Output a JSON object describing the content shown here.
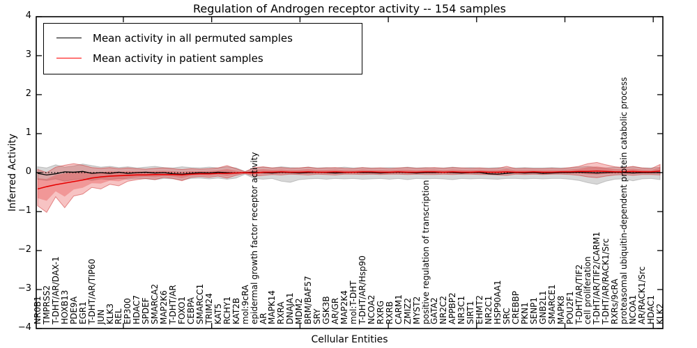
{
  "title": "Regulation of Androgen receptor activity -- 154 samples",
  "ylabel": "Inferred Activity",
  "xlabel": "Cellular Entities",
  "yticks": [
    "4",
    "3",
    "2",
    "1",
    "0",
    "−1",
    "−2",
    "−3",
    "−4"
  ],
  "legend": [
    {
      "label": "Mean activity in all permuted samples",
      "color": "#000000"
    },
    {
      "label": "Mean activity in patient samples",
      "color": "#ff0000"
    }
  ],
  "colors": {
    "patient_line": "#e60000",
    "permuted_line": "#000000",
    "patient_band": "rgba(225,40,40,0.28)",
    "patient_band_edge": "rgba(200,20,20,0.45)",
    "permuted_band": "rgba(110,110,110,0.28)",
    "frame": "#000000"
  },
  "chart_data": {
    "type": "line",
    "title": "Regulation of Androgen receptor activity -- 154 samples",
    "xlabel": "Cellular Entities",
    "ylabel": "Inferred Activity",
    "ylim": [
      -4,
      4
    ],
    "grid": false,
    "legend_position": "upper left",
    "zero_line": "dotted black line at y=0",
    "categories": [
      "NR0B1",
      "TMPRSS2",
      "T-DHT/AR/DAX-1",
      "HOXB13",
      "PDE9A",
      "EGR1",
      "T-DHT/AR/TIP60",
      "JUN",
      "KLK3",
      "REL",
      "EP300",
      "HDAC7",
      "SPDEF",
      "SMARCA2",
      "MAP2K6",
      "T-DHT/AR",
      "FOXO1",
      "CEBPA",
      "SMARCC1",
      "TRIM24",
      "KAT5",
      "RCHY1",
      "KAT2B",
      "mol:9cRA",
      "epidermal growth factor receptor activity",
      "AR",
      "MAPK14",
      "RXRA",
      "DNAJA1",
      "MDM2",
      "BRM/BAF57",
      "SRY",
      "GSK3B",
      "AR/GR",
      "MAP2K4",
      "mol:T-DHT",
      "T-DHT/AR/Hsp90",
      "NCOA2",
      "RXRG",
      "RXRB",
      "CARM1",
      "ZMIZ2",
      "MYST2",
      "positive regulation of transcription",
      "GATA2",
      "NR2C2",
      "APPBP2",
      "NR3C1",
      "SIRT1",
      "EHMT2",
      "NR2C1",
      "HSP90AA1",
      "SRC",
      "CREBBP",
      "PKN1",
      "SENP1",
      "GNB2L1",
      "SMARCE1",
      "MAPK8",
      "POU2F1",
      "T-DHT/AR/TIF2",
      "cell proliferation",
      "T-DHT/AR/TIF2/CARM1",
      "T-DHT/AR/RACK1/Src",
      "RXRs/9cRA",
      "proteasomal ubiquitin-dependent protein catabolic process",
      "NCOA1",
      "AR/RACK1/Src",
      "HDAC1",
      "KLK2"
    ],
    "series": [
      {
        "name": "Mean activity in all permuted samples",
        "color": "#000000",
        "values": [
          -0.02,
          -0.06,
          -0.03,
          0.02,
          0.01,
          0.03,
          -0.02,
          0.0,
          -0.02,
          0.01,
          -0.02,
          0.0,
          0.01,
          -0.01,
          0.0,
          -0.03,
          -0.04,
          -0.02,
          0.0,
          -0.01,
          0.01,
          0.0,
          -0.01,
          0.0,
          0.01,
          0.0,
          -0.01,
          0.01,
          0.0,
          -0.01,
          0.0,
          0.01,
          0.0,
          -0.01,
          0.0,
          0.01,
          0.0,
          0.0,
          -0.01,
          0.0,
          0.01,
          0.0,
          -0.01,
          0.0,
          0.0,
          0.01,
          0.0,
          -0.01,
          0.0,
          0.0,
          -0.03,
          -0.04,
          -0.02,
          0.0,
          -0.01,
          0.0,
          -0.02,
          -0.01,
          0.0,
          0.0,
          0.01,
          0.0,
          -0.01,
          0.0,
          0.01,
          0.0,
          -0.01,
          0.0,
          0.0,
          0.0
        ]
      },
      {
        "name": "Mean activity in patient samples",
        "color": "#e60000",
        "values": [
          -0.42,
          -0.36,
          -0.31,
          -0.27,
          -0.23,
          -0.19,
          -0.14,
          -0.11,
          -0.09,
          -0.08,
          -0.07,
          -0.06,
          -0.06,
          -0.05,
          -0.05,
          -0.05,
          -0.06,
          -0.04,
          -0.03,
          -0.03,
          -0.02,
          -0.02,
          -0.01,
          0.0,
          -0.01,
          0.01,
          0.01,
          0.02,
          0.01,
          0.01,
          0.02,
          0.01,
          0.01,
          0.02,
          0.01,
          0.01,
          0.02,
          0.02,
          0.01,
          0.01,
          0.02,
          0.01,
          0.01,
          0.02,
          0.02,
          0.01,
          0.02,
          0.01,
          0.01,
          0.02,
          0.01,
          0.01,
          0.02,
          0.01,
          0.01,
          0.02,
          0.01,
          0.01,
          0.02,
          0.02,
          0.03,
          0.03,
          0.04,
          0.03,
          0.02,
          0.02,
          0.03,
          0.02,
          0.02,
          0.04
        ]
      },
      {
        "name": "permuted_band_upper",
        "values": [
          0.15,
          0.12,
          0.2,
          0.14,
          0.17,
          0.22,
          0.18,
          0.14,
          0.16,
          0.13,
          0.15,
          0.12,
          0.14,
          0.16,
          0.13,
          0.12,
          0.15,
          0.13,
          0.12,
          0.14,
          0.12,
          0.15,
          0.12,
          0.03,
          0.12,
          0.14,
          0.12,
          0.15,
          0.13,
          0.12,
          0.14,
          0.12,
          0.13,
          0.12,
          0.14,
          0.12,
          0.13,
          0.12,
          0.12,
          0.13,
          0.12,
          0.14,
          0.12,
          0.13,
          0.12,
          0.12,
          0.14,
          0.12,
          0.13,
          0.12,
          0.12,
          0.13,
          0.12,
          0.12,
          0.13,
          0.12,
          0.12,
          0.13,
          0.12,
          0.12,
          0.14,
          0.16,
          0.13,
          0.12,
          0.14,
          0.12,
          0.15,
          0.12,
          0.12,
          0.14
        ]
      },
      {
        "name": "permuted_band_lower",
        "values": [
          -0.17,
          -0.2,
          -0.16,
          -0.22,
          -0.18,
          -0.16,
          -0.2,
          -0.16,
          -0.18,
          -0.15,
          -0.17,
          -0.15,
          -0.16,
          -0.18,
          -0.15,
          -0.16,
          -0.19,
          -0.15,
          -0.14,
          -0.16,
          -0.14,
          -0.17,
          -0.14,
          -0.04,
          -0.15,
          -0.17,
          -0.15,
          -0.22,
          -0.25,
          -0.18,
          -0.16,
          -0.15,
          -0.17,
          -0.15,
          -0.16,
          -0.15,
          -0.17,
          -0.16,
          -0.15,
          -0.17,
          -0.15,
          -0.18,
          -0.15,
          -0.16,
          -0.15,
          -0.16,
          -0.18,
          -0.15,
          -0.16,
          -0.15,
          -0.16,
          -0.17,
          -0.15,
          -0.15,
          -0.16,
          -0.15,
          -0.16,
          -0.15,
          -0.15,
          -0.17,
          -0.2,
          -0.26,
          -0.3,
          -0.22,
          -0.17,
          -0.16,
          -0.21,
          -0.16,
          -0.15,
          -0.18
        ]
      },
      {
        "name": "patient_band_upper",
        "values": [
          0.08,
          0.0,
          0.14,
          0.19,
          0.23,
          0.19,
          0.13,
          0.11,
          0.13,
          0.1,
          0.12,
          0.1,
          0.09,
          0.11,
          0.12,
          0.1,
          0.08,
          0.1,
          0.09,
          0.1,
          0.12,
          0.18,
          0.1,
          0.02,
          0.13,
          0.15,
          0.12,
          0.13,
          0.11,
          0.12,
          0.14,
          0.11,
          0.12,
          0.13,
          0.11,
          0.1,
          0.13,
          0.11,
          0.12,
          0.1,
          0.12,
          0.13,
          0.11,
          0.12,
          0.13,
          0.11,
          0.13,
          0.12,
          0.11,
          0.12,
          0.1,
          0.11,
          0.16,
          0.1,
          0.11,
          0.1,
          0.1,
          0.11,
          0.1,
          0.13,
          0.16,
          0.23,
          0.26,
          0.2,
          0.15,
          0.13,
          0.16,
          0.12,
          0.1,
          0.21
        ]
      },
      {
        "name": "patient_band_lower",
        "values": [
          -0.85,
          -1.02,
          -0.62,
          -0.9,
          -0.6,
          -0.55,
          -0.38,
          -0.42,
          -0.3,
          -0.34,
          -0.22,
          -0.18,
          -0.15,
          -0.18,
          -0.12,
          -0.15,
          -0.21,
          -0.12,
          -0.1,
          -0.12,
          -0.09,
          -0.14,
          -0.07,
          -0.02,
          -0.09,
          -0.07,
          -0.05,
          -0.06,
          -0.04,
          -0.05,
          -0.06,
          -0.04,
          -0.05,
          -0.06,
          -0.04,
          -0.04,
          -0.05,
          -0.04,
          -0.05,
          -0.04,
          -0.04,
          -0.05,
          -0.04,
          -0.05,
          -0.05,
          -0.04,
          -0.05,
          -0.04,
          -0.04,
          -0.05,
          -0.05,
          -0.06,
          -0.07,
          -0.04,
          -0.05,
          -0.04,
          -0.05,
          -0.04,
          -0.04,
          -0.05,
          -0.07,
          -0.11,
          -0.13,
          -0.09,
          -0.06,
          -0.05,
          -0.07,
          -0.05,
          -0.05,
          -0.06
        ]
      }
    ]
  }
}
